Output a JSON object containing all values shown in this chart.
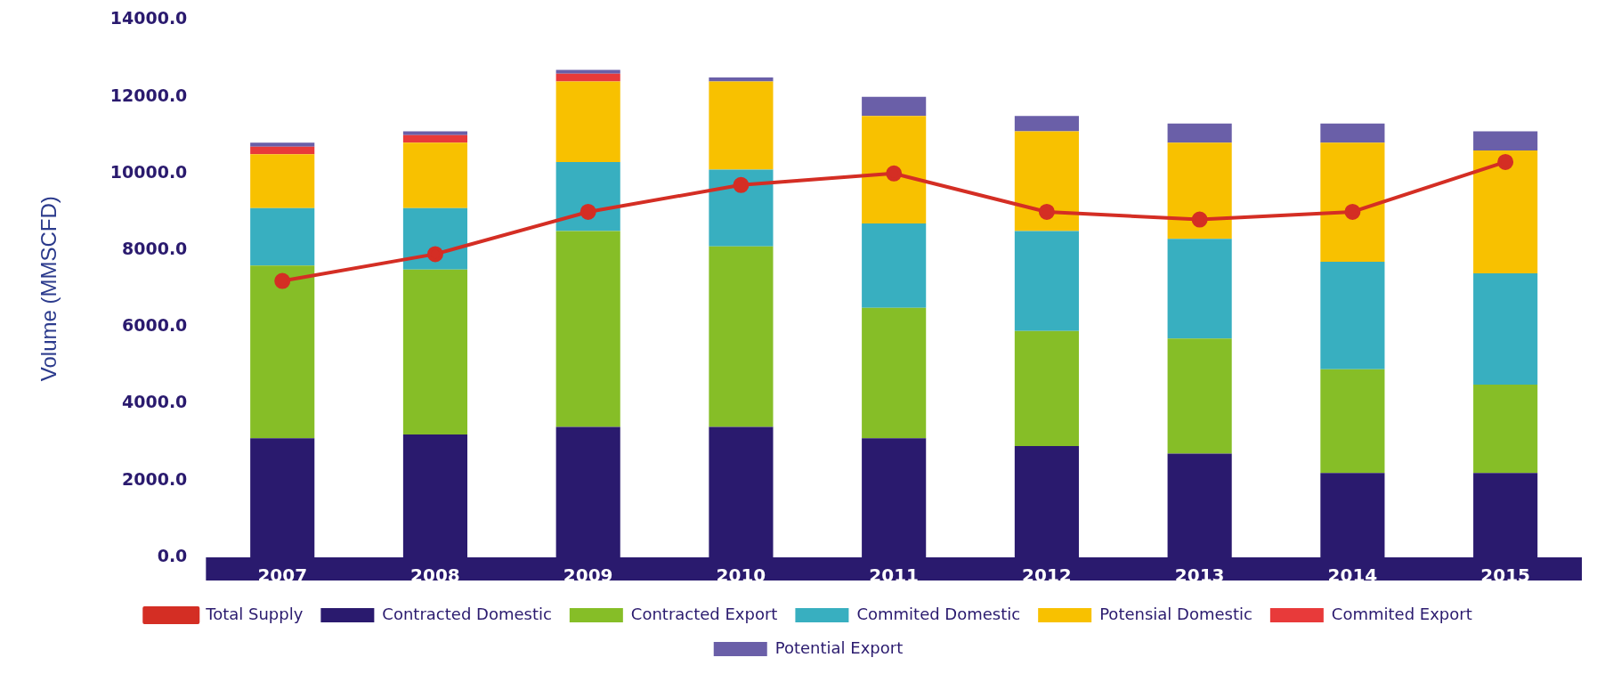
{
  "chart_data": {
    "type": "bar",
    "stacked": true,
    "ylabel": "Volume (MMSCFD)",
    "categories": [
      "2007",
      "2008",
      "2009",
      "2010",
      "2011",
      "2012",
      "2013",
      "2014",
      "2015"
    ],
    "series": [
      {
        "name": "Contracted Domestic",
        "color": "#2a1a6e",
        "values": [
          3100,
          3200,
          3400,
          3400,
          3100,
          2900,
          2700,
          2200,
          2200
        ]
      },
      {
        "name": "Contracted Export",
        "color": "#86be27",
        "values": [
          4500,
          4300,
          5100,
          4700,
          3400,
          3000,
          3000,
          2700,
          2300
        ]
      },
      {
        "name": "Commited Domestic",
        "color": "#38afc0",
        "values": [
          1500,
          1600,
          1800,
          2000,
          2200,
          2600,
          2600,
          2800,
          2900
        ]
      },
      {
        "name": "Potensial Domestic",
        "color": "#f8c100",
        "values": [
          1400,
          1700,
          2100,
          2300,
          2800,
          2600,
          2500,
          3100,
          3200
        ]
      },
      {
        "name": "Commited Export",
        "color": "#e83a3a",
        "values": [
          200,
          200,
          200,
          0,
          0,
          0,
          0,
          0,
          0
        ]
      },
      {
        "name": "Potential Export",
        "color": "#6a5fa8",
        "values": [
          100,
          100,
          100,
          100,
          500,
          400,
          500,
          500,
          500
        ]
      },
      {
        "name": "Total Supply",
        "type": "line",
        "color": "#d42e24",
        "marker": "circle",
        "values": [
          7200,
          7900,
          9000,
          9700,
          10000,
          9000,
          8800,
          9000,
          10300
        ]
      }
    ],
    "ylim": [
      0,
      14000
    ],
    "yticks": [
      {
        "value": 0,
        "label": "0.0"
      },
      {
        "value": 2000,
        "label": "2000.0"
      },
      {
        "value": 4000,
        "label": "4000.0"
      },
      {
        "value": 6000,
        "label": "6000.0"
      },
      {
        "value": 8000,
        "label": "8000.0"
      },
      {
        "value": 10000,
        "label": "10000.0"
      },
      {
        "value": 12000,
        "label": "12000.0"
      },
      {
        "value": 14000,
        "label": "14000.0"
      }
    ],
    "legend": "bottom"
  }
}
